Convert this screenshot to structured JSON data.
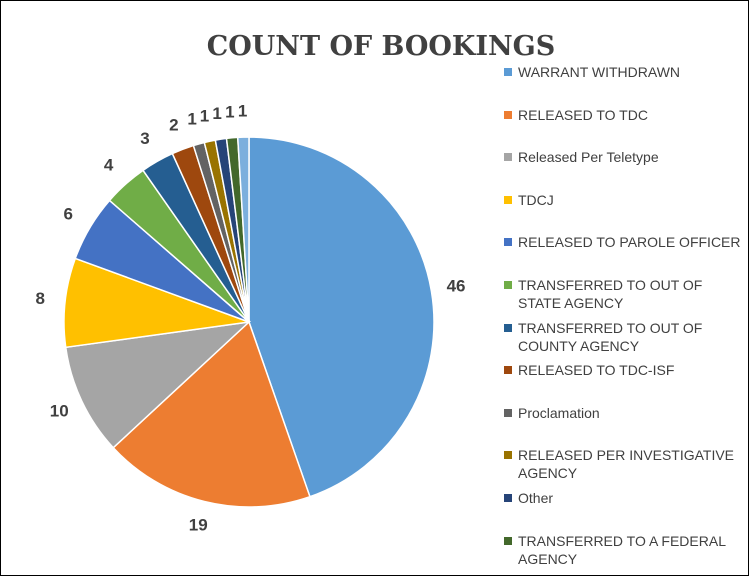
{
  "chart_data": {
    "type": "pie",
    "title": "COUNT OF BOOKINGS",
    "categories": [
      "WARRANT WITHDRAWN",
      "RELEASED TO TDC",
      "Released Per Teletype",
      "TDCJ",
      "RELEASED TO PAROLE OFFICER",
      "TRANSFERRED TO OUT OF STATE AGENCY",
      "TRANSFERRED TO OUT OF COUNTY AGENCY",
      "RELEASED TO TDC-ISF",
      "Proclamation",
      "RELEASED PER INVESTIGATIVE AGENCY",
      "Other",
      "TRANSFERRED TO A FEDERAL AGENCY",
      null
    ],
    "values": [
      46,
      19,
      10,
      8,
      6,
      4,
      3,
      2,
      1,
      1,
      1,
      1,
      1
    ],
    "colors": [
      "#5B9BD5",
      "#ED7D31",
      "#A5A5A5",
      "#FFC000",
      "#4472C4",
      "#70AD47",
      "#255E91",
      "#9E480E",
      "#636363",
      "#997300",
      "#264478",
      "#43682B",
      "#7CAFDD"
    ],
    "legend": "right"
  }
}
